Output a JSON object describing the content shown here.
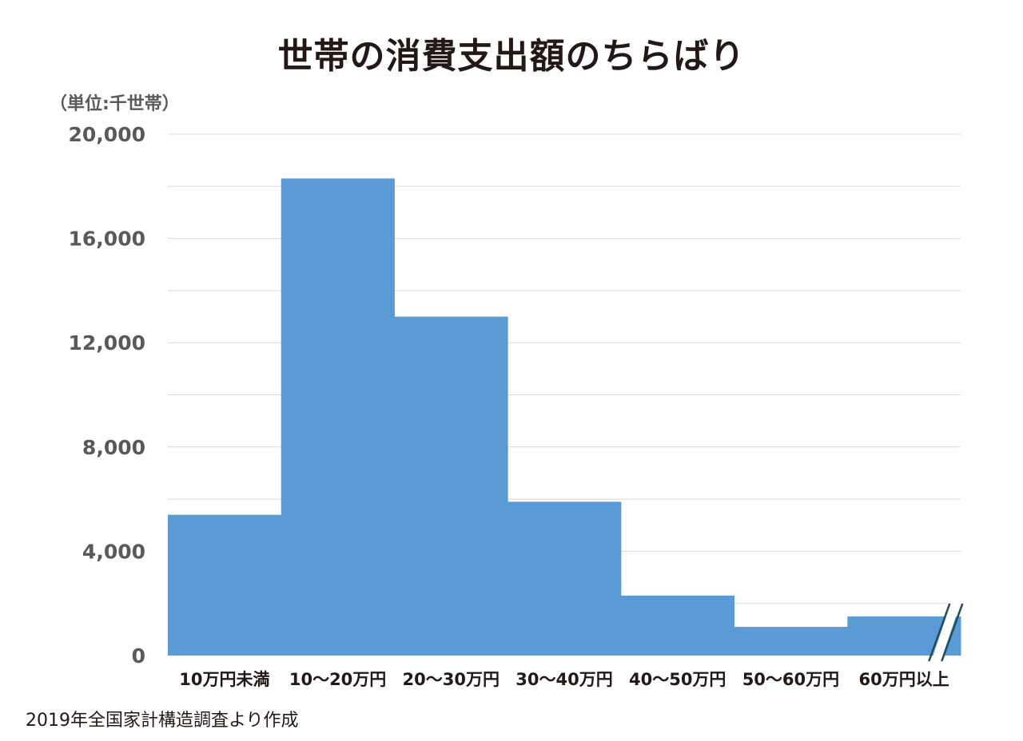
{
  "title": "世帯の消費支出額のちらばり",
  "unit_label": "（単位:千世帯）",
  "source_note": "2019年全国家計構造調査より作成",
  "chart_data": {
    "type": "bar",
    "title": "世帯の消費支出額のちらばり",
    "xlabel": "",
    "ylabel": "（単位:千世帯）",
    "categories": [
      "10万円未満",
      "10～20万円",
      "20～30万円",
      "30～40万円",
      "40～50万円",
      "50～60万円",
      "60万円以上"
    ],
    "values": [
      5400,
      18300,
      13000,
      5900,
      2300,
      1100,
      1500
    ],
    "ylim": [
      0,
      20000
    ],
    "yticks": [
      0,
      4000,
      8000,
      12000,
      16000,
      20000
    ],
    "ytick_labels": [
      "0",
      "4,000",
      "8,000",
      "12,000",
      "16,000",
      "20,000"
    ],
    "grid": true,
    "bar_color": "#5b9bd5",
    "axis_break_on_last_bar": true
  }
}
